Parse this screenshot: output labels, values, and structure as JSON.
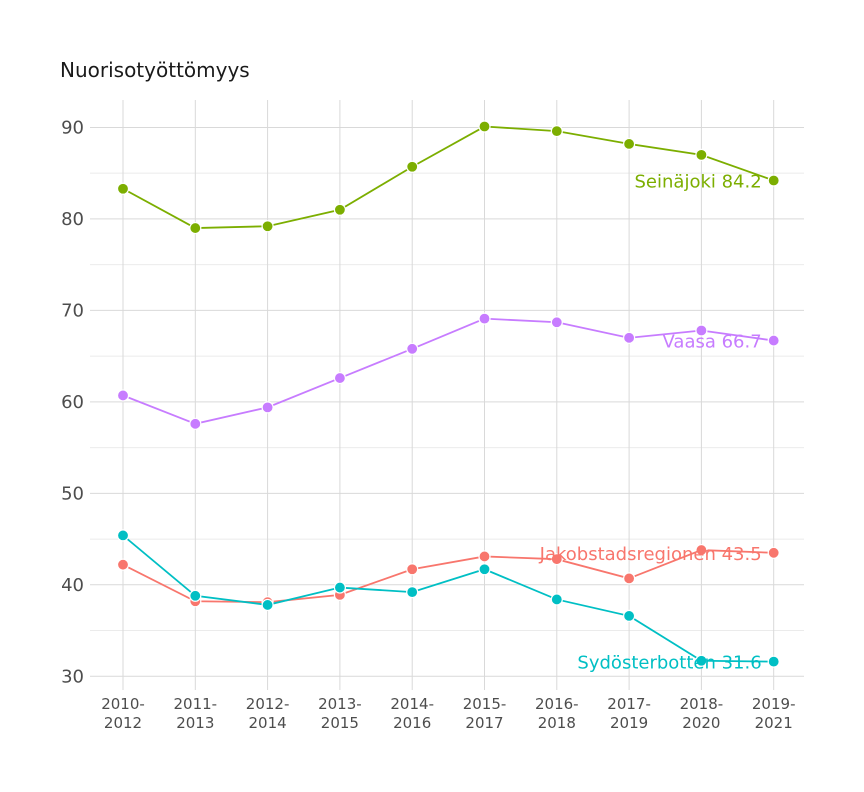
{
  "chart_data": {
    "type": "line",
    "title": "Nuorisotyöttömyys",
    "xlabel": "",
    "ylabel": "",
    "x_labels": [
      [
        "2010-",
        "2012"
      ],
      [
        "2011-",
        "2013"
      ],
      [
        "2012-",
        "2014"
      ],
      [
        "2013-",
        "2015"
      ],
      [
        "2014-",
        "2016"
      ],
      [
        "2015-",
        "2017"
      ],
      [
        "2016-",
        "2018"
      ],
      [
        "2017-",
        "2019"
      ],
      [
        "2018-",
        "2020"
      ],
      [
        "2019-",
        "2021"
      ]
    ],
    "y_ticks": [
      30,
      40,
      50,
      60,
      70,
      80,
      90
    ],
    "ylim": [
      28.5,
      93
    ],
    "grid": true,
    "series": [
      {
        "name": "Seinäjoki",
        "color": "#7cae00",
        "label": "Seinäjoki 84.2",
        "values": [
          83.3,
          79.0,
          79.2,
          81.0,
          85.7,
          90.1,
          89.6,
          88.2,
          87.0,
          84.2
        ]
      },
      {
        "name": "Vaasa",
        "color": "#c77cff",
        "label": "Vaasa 66.7",
        "values": [
          60.7,
          57.6,
          59.4,
          62.6,
          65.8,
          69.1,
          68.7,
          67.0,
          67.8,
          66.7
        ]
      },
      {
        "name": "Jakobstadsregionen",
        "color": "#f8766d",
        "label": "Jakobstadsregionen 43.5",
        "values": [
          42.2,
          38.2,
          38.1,
          38.9,
          41.7,
          43.1,
          42.8,
          40.7,
          43.8,
          43.5
        ]
      },
      {
        "name": "Sydösterbotten",
        "color": "#00bfc4",
        "label": "Sydösterbotten 31.6",
        "values": [
          45.4,
          38.8,
          37.8,
          39.7,
          39.2,
          41.7,
          38.4,
          36.6,
          31.7,
          31.6
        ]
      }
    ]
  }
}
